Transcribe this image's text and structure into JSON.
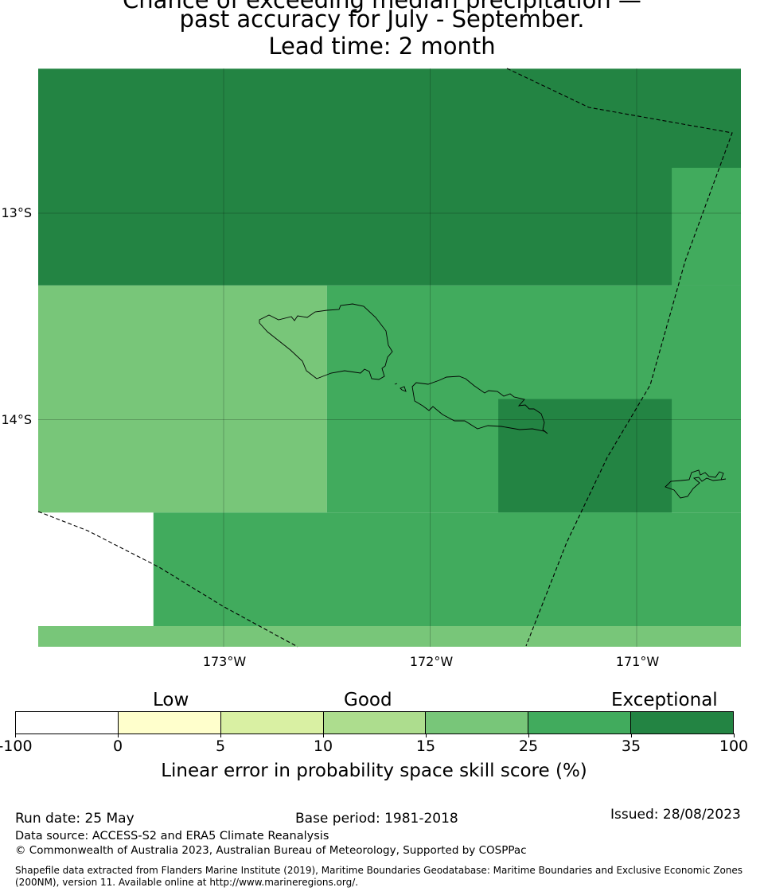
{
  "title": {
    "line1": "Chance of exceeding median precipitation —",
    "line2": "past accuracy for July - September.",
    "line3": "Lead time: 2 month"
  },
  "map": {
    "latitudes": [
      {
        "value": -13,
        "label": "13°S"
      },
      {
        "value": -14,
        "label": "14°S"
      }
    ],
    "longitudes": [
      {
        "value": -173,
        "label": "173°W"
      },
      {
        "value": -172,
        "label": "172°W"
      },
      {
        "value": -171,
        "label": "171°W"
      }
    ],
    "skill_cells": [
      {
        "lon": [
          -173.9,
          -170.45
        ],
        "lat": [
          -12.3,
          -13.35
        ],
        "category": "35-100"
      },
      {
        "lon": [
          -170.83,
          -170.45
        ],
        "lat": [
          -12.78,
          -13.35
        ],
        "category": "25-35"
      },
      {
        "lon": [
          -173.9,
          -172.5
        ],
        "lat": [
          -13.35,
          -14.45
        ],
        "category": "15-25"
      },
      {
        "lon": [
          -172.5,
          -170.45
        ],
        "lat": [
          -13.35,
          -14.45
        ],
        "category": "25-35"
      },
      {
        "lon": [
          -171.67,
          -170.83
        ],
        "lat": [
          -13.9,
          -14.45
        ],
        "category": "35-100"
      },
      {
        "lon": [
          -173.34,
          -170.45
        ],
        "lat": [
          -14.45,
          -15.0
        ],
        "category": "25-35"
      },
      {
        "lon": [
          -173.9,
          -170.45
        ],
        "lat": [
          -15.0,
          -15.1
        ],
        "category": "15-25"
      }
    ]
  },
  "legend": {
    "categories": [
      {
        "name": "Low"
      },
      {
        "name": "Good"
      },
      {
        "name": "Exceptional"
      }
    ],
    "colors": [
      "#ffffff",
      "#ffffcc",
      "#d9f0a3",
      "#addd8e",
      "#78c679",
      "#41ab5d",
      "#238443"
    ],
    "ticks": [
      "-100",
      "0",
      "5",
      "10",
      "15",
      "25",
      "35",
      "100"
    ],
    "label": "Linear error in probability space skill score (%)"
  },
  "footer": {
    "run_date": "Run date: 25 May",
    "base_period": "Base period: 1981-2018",
    "issued": "Issued: 28/08/2023",
    "data_source": "Data source: ACCESS-S2 and ERA5 Climate Reanalysis",
    "copyright": "© Commonwealth of Australia 2023, Australian Bureau of Meteorology, Supported by COSPPac",
    "shapefile": "Shapefile data extracted from Flanders Marine Institute (2019), Maritime Boundaries Geodatabase: Maritime Boundaries and Exclusive Economic Zones (200NM), version 11. Available online at http://www.marineregions.org/."
  }
}
